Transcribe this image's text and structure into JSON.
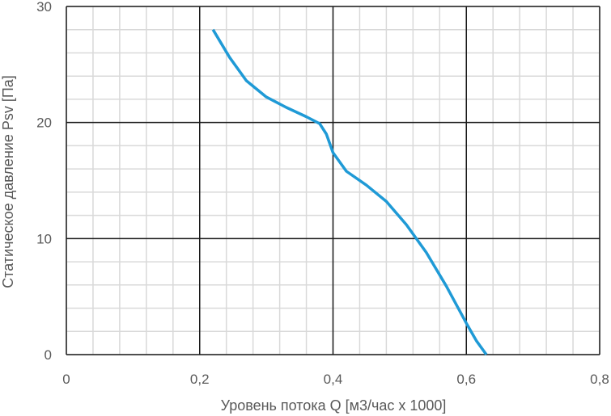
{
  "chart_data": {
    "type": "line",
    "xlabel": "Уровень потока Q [м3/час x 1000]",
    "ylabel": "Статическое давление Psv [Па]",
    "xlim": [
      0,
      0.8
    ],
    "ylim": [
      0,
      30
    ],
    "x_ticks": [
      "0",
      "0,2",
      "0,4",
      "0,6",
      "0,8"
    ],
    "x_tick_values": [
      0,
      0.2,
      0.4,
      0.6,
      0.8
    ],
    "y_ticks": [
      "0",
      "10",
      "20",
      "30"
    ],
    "y_tick_values": [
      0,
      10,
      20,
      30
    ],
    "grid": {
      "major": true,
      "minor": true,
      "x_minor_step": 0.04,
      "y_minor_step": 2
    },
    "series": [
      {
        "color": "#1f9ad6",
        "x": [
          0.22,
          0.245,
          0.27,
          0.3,
          0.33,
          0.36,
          0.38,
          0.39,
          0.4,
          0.42,
          0.45,
          0.48,
          0.51,
          0.54,
          0.57,
          0.6,
          0.615,
          0.63
        ],
        "y": [
          28,
          25.6,
          23.6,
          22.2,
          21.3,
          20.5,
          19.9,
          19.0,
          17.4,
          15.8,
          14.6,
          13.2,
          11.2,
          8.8,
          5.9,
          2.7,
          1.2,
          0
        ]
      }
    ]
  }
}
